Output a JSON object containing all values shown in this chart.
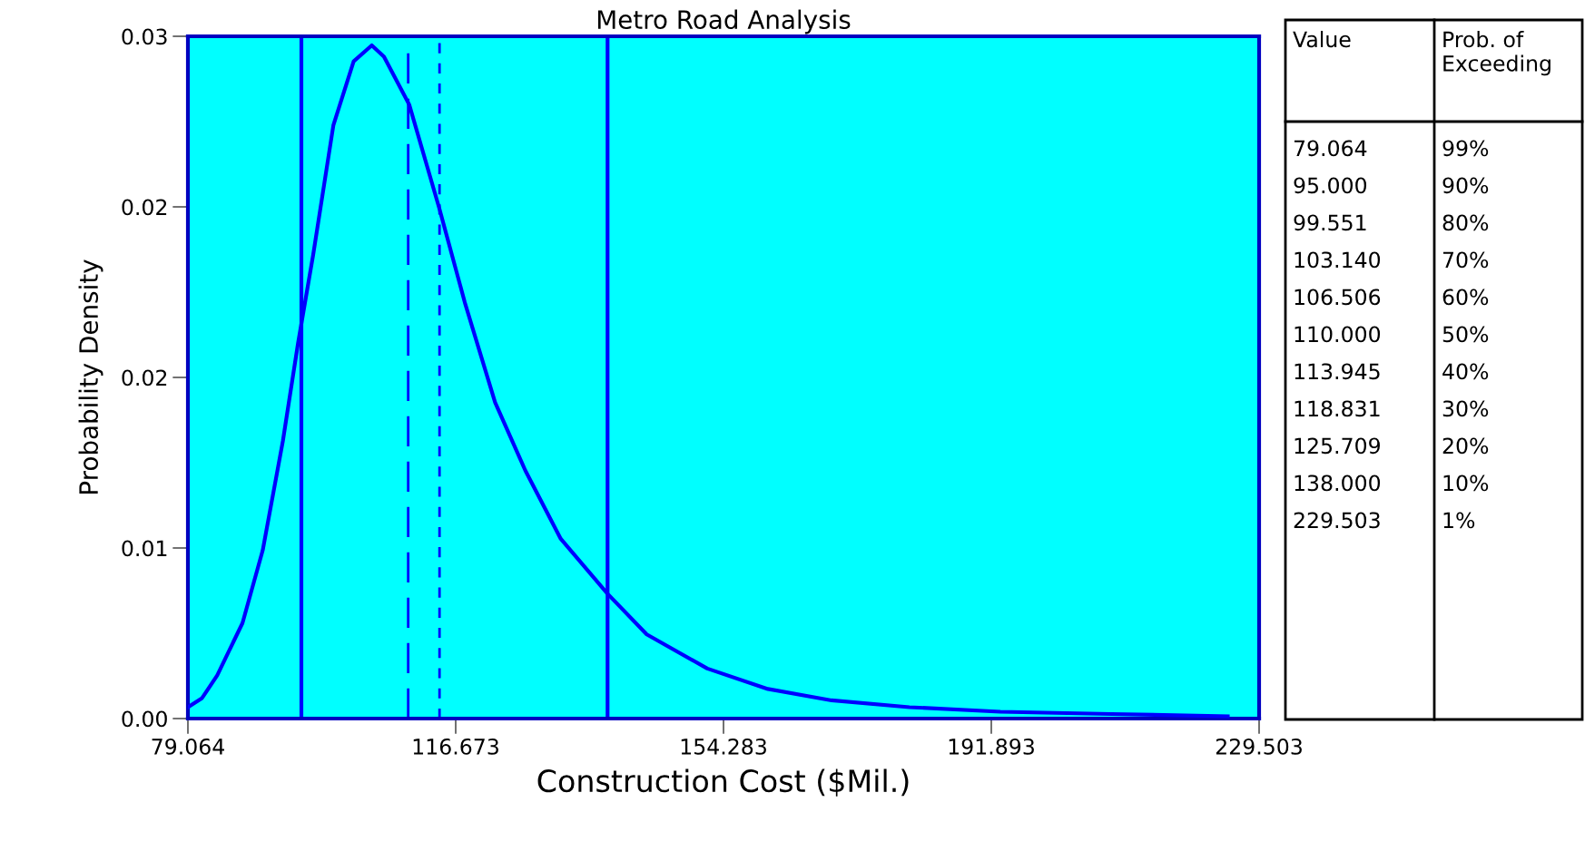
{
  "chart_data": {
    "type": "line",
    "title": "Metro Road Analysis",
    "xlabel": "Construction Cost ($Mil.)",
    "ylabel": "Probability Density",
    "x": [
      79.07,
      81.05,
      83.18,
      86.73,
      89.57,
      92.4,
      94.53,
      96.66,
      99.5,
      102.34,
      104.89,
      106.6,
      110.14,
      114.4,
      117.95,
      122.21,
      126.46,
      131.43,
      137.96,
      143.5,
      152.01,
      160.52,
      169.46,
      180.39,
      193.17,
      208.78,
      225.1
    ],
    "series": [
      {
        "color": "#0000ff",
        "values": [
          0.0005,
          0.0009,
          0.0019,
          0.0042,
          0.0074,
          0.0122,
          0.0165,
          0.0204,
          0.0261,
          0.0289,
          0.0296,
          0.0291,
          0.027,
          0.0224,
          0.0183,
          0.0139,
          0.0109,
          0.0079,
          0.0055,
          0.0037,
          0.0022,
          0.0013,
          0.0008,
          0.0005,
          0.0003,
          0.0002,
          0.0001
        ]
      }
    ],
    "xlim": [
      79.064,
      229.503
    ],
    "ylim": [
      0,
      0.03
    ],
    "xticks": [
      79.064,
      116.673,
      154.283,
      191.893,
      229.503
    ],
    "yticks": [
      {
        "value": 0,
        "label": "0.00"
      },
      {
        "value": 0.0075,
        "label": "0.01"
      },
      {
        "value": 0.015,
        "label": "0.02"
      },
      {
        "value": 0.0225,
        "label": "0.02"
      },
      {
        "value": 0.03,
        "label": "0.03"
      }
    ],
    "ref_lines": [
      {
        "axis": "x",
        "value": 95.0,
        "color": "#0000ff",
        "line_style": "solid"
      },
      {
        "axis": "x",
        "value": 138.0,
        "color": "#0000ff",
        "line_style": "solid"
      },
      {
        "axis": "x",
        "value": 110.0,
        "color": "#0000ff",
        "line_style": "dashed"
      },
      {
        "axis": "x",
        "value": 114.4,
        "color": "#0000ff",
        "line_style": "dotted"
      }
    ],
    "annotations": [
      "Value",
      "Prob. of\nExceeding",
      "79.064",
      "99%",
      "95.000",
      "90%",
      "99.551",
      "80%",
      "103.140",
      "70%",
      "106.506",
      "60%",
      "110.000",
      "50%",
      "113.945",
      "40%",
      "118.831",
      "30%",
      "125.709",
      "20%",
      "138.000",
      "10%",
      "229.503",
      "1%"
    ],
    "grid": false,
    "marker": "none",
    "line_style": "solid"
  }
}
